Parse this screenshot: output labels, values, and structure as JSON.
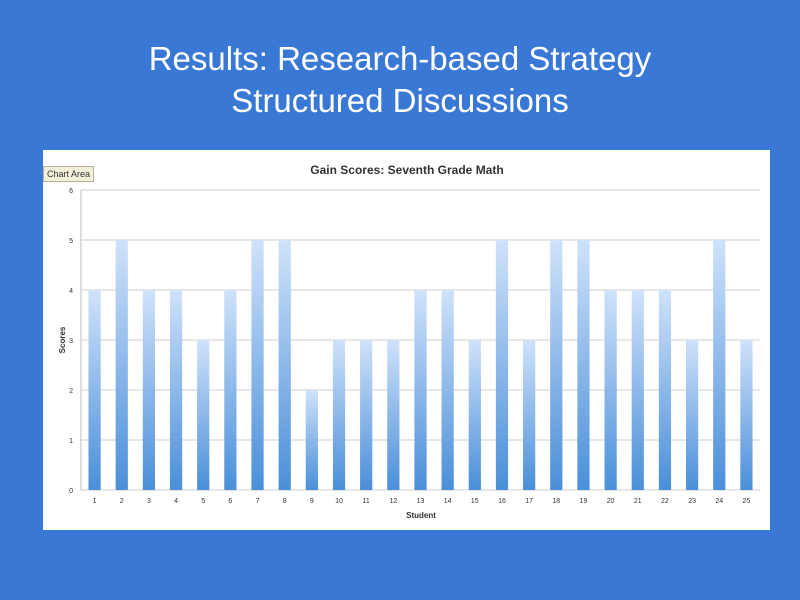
{
  "slide": {
    "title_line1": "Results: Research-based Strategy",
    "title_line2": "Structured Discussions"
  },
  "chart_area_tag": "Chart Area",
  "colors": {
    "background": "#3a78d6",
    "bar_top": "#cfe2fa",
    "bar_bottom": "#4a8fd9",
    "grid": "#cfcfcf"
  },
  "chart_data": {
    "type": "bar",
    "title": "Gain Scores: Seventh Grade Math",
    "xlabel": "Student",
    "ylabel": "Scores",
    "categories": [
      "1",
      "2",
      "3",
      "4",
      "5",
      "6",
      "7",
      "8",
      "9",
      "10",
      "11",
      "12",
      "13",
      "14",
      "15",
      "16",
      "17",
      "18",
      "19",
      "20",
      "21",
      "22",
      "23",
      "24",
      "25"
    ],
    "values": [
      4,
      5,
      4,
      4,
      3,
      4,
      5,
      5,
      2,
      3,
      3,
      3,
      4,
      4,
      3,
      5,
      3,
      5,
      5,
      4,
      4,
      4,
      3,
      5,
      3
    ],
    "ylim": [
      0,
      6
    ],
    "yticks": [
      0,
      1,
      2,
      3,
      4,
      5,
      6
    ],
    "grid": true,
    "legend": "none"
  }
}
